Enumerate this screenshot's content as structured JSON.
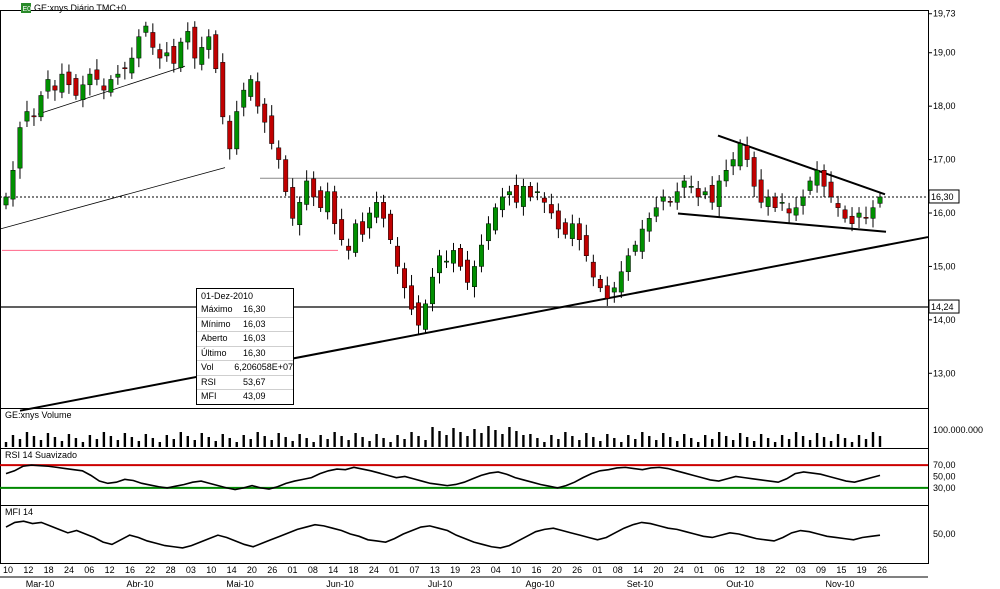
{
  "header": {
    "ticker_badge": "E0",
    "title": "GE:xnys Diário TMC+0"
  },
  "info_box": {
    "date": "01-Dez-2010",
    "rows": [
      {
        "k": "Máximo",
        "v": "16,30"
      },
      {
        "k": "Mínimo",
        "v": "16,03"
      },
      {
        "k": "Aberto",
        "v": "16,03"
      },
      {
        "k": "Último",
        "v": "16,30"
      },
      {
        "k": "Vol",
        "v": "6,206058E+07"
      },
      {
        "k": "RSI",
        "v": "53,67"
      },
      {
        "k": "MFI",
        "v": "43,09"
      }
    ]
  },
  "price_axis": {
    "ticks": [
      "19,73",
      "19,00",
      "18,00",
      "17,00",
      "16,00",
      "15,00",
      "14,00",
      "13,00"
    ],
    "tags": [
      "16,30",
      "14,24"
    ]
  },
  "volume_pane": {
    "title": "GE:xnys Volume",
    "tick": "100.000.000"
  },
  "rsi_pane": {
    "title": "RSI 14 Suavizado",
    "ticks": [
      "70,00",
      "50,00",
      "30,00"
    ]
  },
  "mfi_pane": {
    "title": "MFI 14",
    "ticks": [
      "50,00"
    ]
  },
  "date_axis": {
    "days": [
      "10",
      "12",
      "18",
      "24",
      "06",
      "12",
      "16",
      "22",
      "28",
      "03",
      "10",
      "14",
      "20",
      "26",
      "01",
      "08",
      "14",
      "18",
      "24",
      "01",
      "07",
      "13",
      "19",
      "23",
      "04",
      "10",
      "16",
      "20",
      "26",
      "01",
      "08",
      "14",
      "20",
      "24",
      "01",
      "06",
      "12",
      "18",
      "22",
      "03",
      "09",
      "15",
      "19",
      "26"
    ],
    "months": [
      "Mar-10",
      "Abr-10",
      "Mai-10",
      "Jun-10",
      "Jul-10",
      "Ago-10",
      "Set-10",
      "Out-10",
      "Nov-10"
    ]
  },
  "colors": {
    "rsi_upper": "#cc0000",
    "rsi_lower": "#008800",
    "support_line": "#ff6688",
    "candle_up": "#009000",
    "candle_down": "#c00000"
  },
  "chart_data": {
    "type": "candlestick",
    "title": "GE:xnys Diário TMC+0",
    "y_range": [
      12.35,
      19.8
    ],
    "last_close": 16.3,
    "reference_level": 14.24,
    "closes": [
      16.3,
      16.8,
      17.6,
      17.9,
      17.8,
      18.2,
      18.5,
      18.3,
      18.6,
      18.4,
      18.2,
      18.4,
      18.6,
      18.5,
      18.3,
      18.5,
      18.6,
      18.7,
      18.9,
      19.3,
      19.5,
      19.1,
      18.9,
      19.0,
      18.8,
      19.2,
      19.4,
      18.9,
      19.1,
      19.3,
      18.7,
      17.8,
      17.2,
      17.9,
      18.3,
      18.5,
      18.0,
      17.7,
      17.3,
      17.0,
      16.4,
      15.9,
      16.2,
      16.6,
      16.3,
      16.1,
      16.4,
      15.8,
      15.5,
      15.3,
      15.8,
      15.6,
      16.0,
      16.2,
      15.9,
      15.5,
      15.0,
      14.6,
      14.2,
      13.9,
      14.3,
      14.8,
      15.2,
      15.1,
      15.3,
      15.0,
      14.7,
      15.0,
      15.4,
      15.8,
      16.1,
      16.3,
      16.4,
      16.2,
      16.5,
      16.3,
      16.4,
      16.2,
      16.0,
      15.7,
      15.6,
      15.8,
      15.5,
      15.2,
      14.8,
      14.6,
      14.4,
      14.6,
      14.9,
      15.2,
      15.4,
      15.7,
      15.9,
      16.1,
      16.3,
      16.2,
      16.4,
      16.6,
      16.5,
      16.3,
      16.4,
      16.2,
      16.6,
      16.8,
      17.0,
      17.3,
      17.0,
      16.5,
      16.2,
      16.3,
      16.1,
      16.2,
      16.0,
      16.1,
      16.3,
      16.6,
      16.8,
      16.5,
      16.3,
      16.1,
      15.9,
      15.8,
      16.0,
      15.9,
      16.1,
      16.3
    ],
    "rsi": [
      55,
      60,
      68,
      70,
      69,
      68,
      66,
      64,
      62,
      60,
      52,
      42,
      38,
      40,
      45,
      43,
      38,
      35,
      32,
      30,
      33,
      36,
      40,
      42,
      38,
      34,
      30,
      27,
      30,
      34,
      30,
      28,
      32,
      38,
      42,
      45,
      48,
      55,
      60,
      63,
      62,
      66,
      63,
      60,
      56,
      52,
      48,
      50,
      46,
      42,
      38,
      36,
      34,
      36,
      40,
      46,
      52,
      56,
      58,
      54,
      48,
      44,
      40,
      36,
      33,
      30,
      34,
      40,
      48,
      55,
      60,
      62,
      65,
      66,
      64,
      62,
      65,
      66,
      64,
      60,
      56,
      52,
      48,
      44,
      42,
      46,
      50,
      48,
      46,
      44,
      42,
      40,
      46,
      55,
      58,
      56,
      54,
      50,
      46,
      42,
      40,
      44,
      48,
      52
    ],
    "mfi": [
      62,
      70,
      72,
      68,
      70,
      64,
      58,
      52,
      56,
      50,
      44,
      36,
      32,
      40,
      48,
      44,
      38,
      34,
      30,
      28,
      26,
      30,
      36,
      42,
      48,
      44,
      38,
      32,
      28,
      34,
      40,
      46,
      52,
      58,
      62,
      66,
      64,
      60,
      56,
      50,
      46,
      40,
      38,
      36,
      42,
      50,
      56,
      62,
      64,
      60,
      56,
      48,
      42,
      36,
      32,
      28,
      26,
      30,
      38,
      46,
      54,
      58,
      60,
      56,
      52,
      48,
      44,
      40,
      44,
      52,
      60,
      66,
      70,
      68,
      64,
      60,
      58,
      54,
      50,
      46,
      44,
      48,
      52,
      50,
      46,
      42,
      40,
      38,
      44,
      52,
      56,
      54,
      50,
      46,
      44,
      42,
      40,
      44,
      46,
      48
    ],
    "rsi_levels": [
      70,
      30
    ],
    "volume_scale_label": "100.000.000"
  }
}
